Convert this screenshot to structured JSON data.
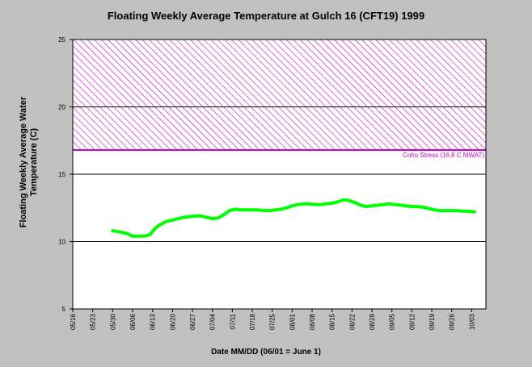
{
  "chart_data": {
    "type": "line",
    "title": "Floating Weekly Average Temperature at Gulch 16 (CFT19) 1999",
    "xlabel": "Date MM/DD (06/01 = June 1)",
    "ylabel": "Floating Weekly Average Water Temperature (C)",
    "ylim": [
      5,
      25
    ],
    "yticks": [
      5,
      10,
      15,
      20,
      25
    ],
    "grid_y": true,
    "x_tick_labels": [
      "05/16",
      "05/23",
      "05/30",
      "06/06",
      "06/13",
      "06/20",
      "06/27",
      "07/04",
      "07/11",
      "07/18",
      "07/25",
      "08/01",
      "08/08",
      "08/15",
      "08/22",
      "08/29",
      "09/05",
      "09/12",
      "09/19",
      "09/26",
      "10/03"
    ],
    "x_range_days": [
      0,
      145
    ],
    "stress_band": {
      "label": "Coho Stress (16.8 C MWAT)",
      "from": 16.8,
      "to": 25
    },
    "colors": {
      "series": "#00ff00",
      "band": "#cc00cc",
      "background": "#c0c0c0",
      "plot": "#ffffff"
    },
    "series": [
      {
        "x_days": [
          14,
          17,
          19,
          21,
          23,
          25,
          27,
          29,
          31,
          33,
          35,
          37,
          39,
          41,
          43,
          45,
          47,
          49,
          51,
          53,
          55,
          57,
          59,
          61,
          63,
          65,
          67,
          69,
          71,
          73,
          75,
          77,
          79,
          81,
          83,
          85,
          87,
          89,
          91,
          93,
          95,
          97,
          99,
          101,
          103,
          105,
          107,
          109,
          111,
          113,
          115,
          117,
          119,
          121,
          123,
          125,
          127,
          129,
          131,
          133,
          135,
          137,
          139,
          141
        ],
        "values": [
          10.8,
          10.7,
          10.6,
          10.4,
          10.4,
          10.4,
          10.5,
          11.0,
          11.3,
          11.5,
          11.6,
          11.7,
          11.8,
          11.85,
          11.9,
          11.9,
          11.8,
          11.7,
          11.75,
          12.0,
          12.3,
          12.4,
          12.35,
          12.35,
          12.35,
          12.35,
          12.3,
          12.3,
          12.35,
          12.4,
          12.5,
          12.65,
          12.75,
          12.8,
          12.8,
          12.75,
          12.75,
          12.8,
          12.85,
          12.95,
          13.1,
          13.05,
          12.9,
          12.7,
          12.6,
          12.65,
          12.7,
          12.75,
          12.8,
          12.75,
          12.7,
          12.65,
          12.6,
          12.6,
          12.55,
          12.45,
          12.35,
          12.3,
          12.3,
          12.3,
          12.3,
          12.25,
          12.25,
          12.2
        ]
      }
    ]
  }
}
